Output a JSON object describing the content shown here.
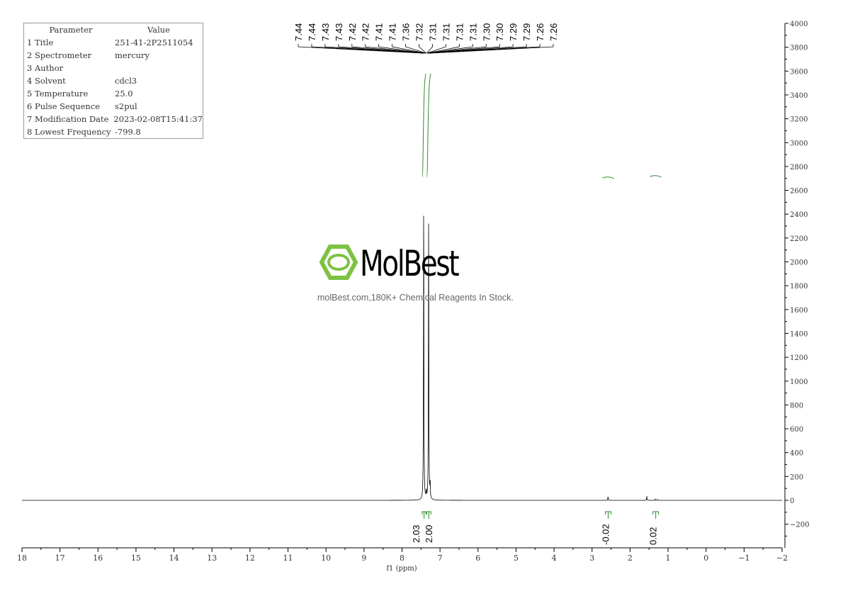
{
  "parameters": {
    "header": [
      "Parameter",
      "Value"
    ],
    "rows": [
      [
        "1 Title",
        "251-41-2P2511054"
      ],
      [
        "2 Spectrometer",
        "mercury"
      ],
      [
        "3 Author",
        ""
      ],
      [
        "4 Solvent",
        "cdcl3"
      ],
      [
        "5 Temperature",
        "25.0"
      ],
      [
        "6 Pulse Sequence",
        "s2pul"
      ],
      [
        "7 Modification Date",
        "2023-02-08T15:41:37"
      ],
      [
        "8 Lowest Frequency",
        "-799.8"
      ]
    ]
  },
  "watermark": {
    "brand": "MolBest",
    "tagline": "molBest.com,180K+ Chemical Reagents In Stock.",
    "color": "#7dc242"
  },
  "chart_data": {
    "type": "line",
    "xlabel": "f1 (ppm)",
    "xlim": [
      18,
      -2
    ],
    "ylim": [
      -400,
      4000
    ],
    "x_ticks": [
      18,
      17,
      16,
      15,
      14,
      13,
      12,
      11,
      10,
      9,
      8,
      7,
      6,
      5,
      4,
      3,
      2,
      1,
      0,
      -1,
      -2
    ],
    "y_ticks": [
      -200,
      0,
      200,
      400,
      600,
      800,
      1000,
      1200,
      1400,
      1600,
      1800,
      2000,
      2200,
      2400,
      2600,
      2800,
      3000,
      3200,
      3400,
      3600,
      3800,
      4000
    ],
    "peaks": [
      {
        "ppm": 7.43,
        "height": 2530
      },
      {
        "ppm": 7.3,
        "height": 2380
      },
      {
        "ppm": 7.36,
        "height": 60
      },
      {
        "ppm": 7.26,
        "height": 120
      },
      {
        "ppm": 2.58,
        "height": 30
      },
      {
        "ppm": 1.56,
        "height": 35
      },
      {
        "ppm": 1.34,
        "height": 10
      },
      {
        "ppm": 1.28,
        "height": 8
      }
    ],
    "peak_labels": [
      "7.44",
      "7.44",
      "7.43",
      "7.43",
      "7.42",
      "7.42",
      "7.41",
      "7.41",
      "7.36",
      "7.32",
      "7.31",
      "7.31",
      "7.31",
      "7.31",
      "7.30",
      "7.30",
      "7.29",
      "7.29",
      "7.26",
      "7.26"
    ],
    "integrals": [
      {
        "from": 7.47,
        "to": 7.37,
        "value": "2.03"
      },
      {
        "from": 7.35,
        "to": 7.24,
        "value": "2.00"
      },
      {
        "from": 2.65,
        "to": 2.5,
        "value": "-0.02"
      },
      {
        "from": 1.4,
        "to": 1.25,
        "value": "0.02"
      }
    ],
    "colors": {
      "spectrum": "#000000",
      "integral": "#2e8b2e"
    }
  }
}
